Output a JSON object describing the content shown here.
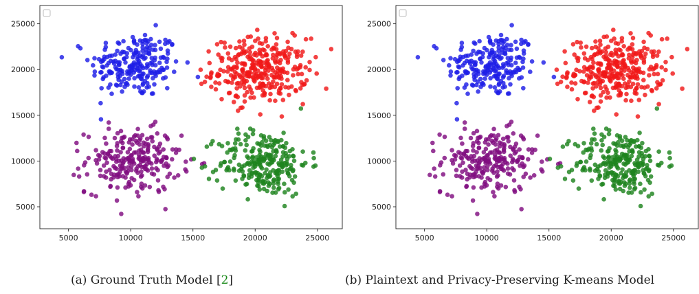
{
  "captions": {
    "a_text": "(a) Ground Truth Model [",
    "a_ref": "2",
    "a_close": "]",
    "b_text": "(b) Plaintext and Privacy-Preserving K-means Model"
  },
  "colors": {
    "blue": "#1f1fe6",
    "red": "#f01818",
    "purple": "#800e80",
    "green": "#1e841e"
  },
  "chart_data": [
    {
      "type": "scatter",
      "title": "",
      "xlabel": "",
      "ylabel": "",
      "xlim": [
        2700,
        27000
      ],
      "ylim": [
        2600,
        27000
      ],
      "xticks": [
        5000,
        10000,
        15000,
        20000,
        25000
      ],
      "yticks": [
        5000,
        10000,
        15000,
        20000,
        25000
      ],
      "legend": "top-left (empty)",
      "grid": false,
      "clusters": [
        {
          "color": "blue",
          "center": [
            10400,
            20500
          ],
          "spread": [
            1800,
            1800
          ],
          "count": 230
        },
        {
          "color": "red",
          "center": [
            20400,
            19900
          ],
          "spread": [
            1900,
            1750
          ],
          "count": 330
        },
        {
          "color": "purple",
          "center": [
            10200,
            10000
          ],
          "spread": [
            1900,
            1750
          ],
          "count": 250
        },
        {
          "color": "green",
          "center": [
            20700,
            9800
          ],
          "spread": [
            1800,
            1800
          ],
          "count": 260
        }
      ]
    },
    {
      "type": "scatter",
      "title": "",
      "xlabel": "",
      "ylabel": "",
      "xlim": [
        2700,
        27000
      ],
      "ylim": [
        2600,
        27000
      ],
      "xticks": [
        5000,
        10000,
        15000,
        20000,
        25000
      ],
      "yticks": [
        5000,
        10000,
        15000,
        20000,
        25000
      ],
      "legend": "top-left (empty)",
      "grid": false,
      "clusters": [
        {
          "color": "blue",
          "center": [
            10400,
            20500
          ],
          "spread": [
            1800,
            1800
          ],
          "count": 230
        },
        {
          "color": "red",
          "center": [
            20400,
            19900
          ],
          "spread": [
            1900,
            1750
          ],
          "count": 330
        },
        {
          "color": "purple",
          "center": [
            10200,
            10000
          ],
          "spread": [
            1900,
            1750
          ],
          "count": 250
        },
        {
          "color": "green",
          "center": [
            20700,
            9800
          ],
          "spread": [
            1800,
            1800
          ],
          "count": 260
        }
      ]
    }
  ]
}
